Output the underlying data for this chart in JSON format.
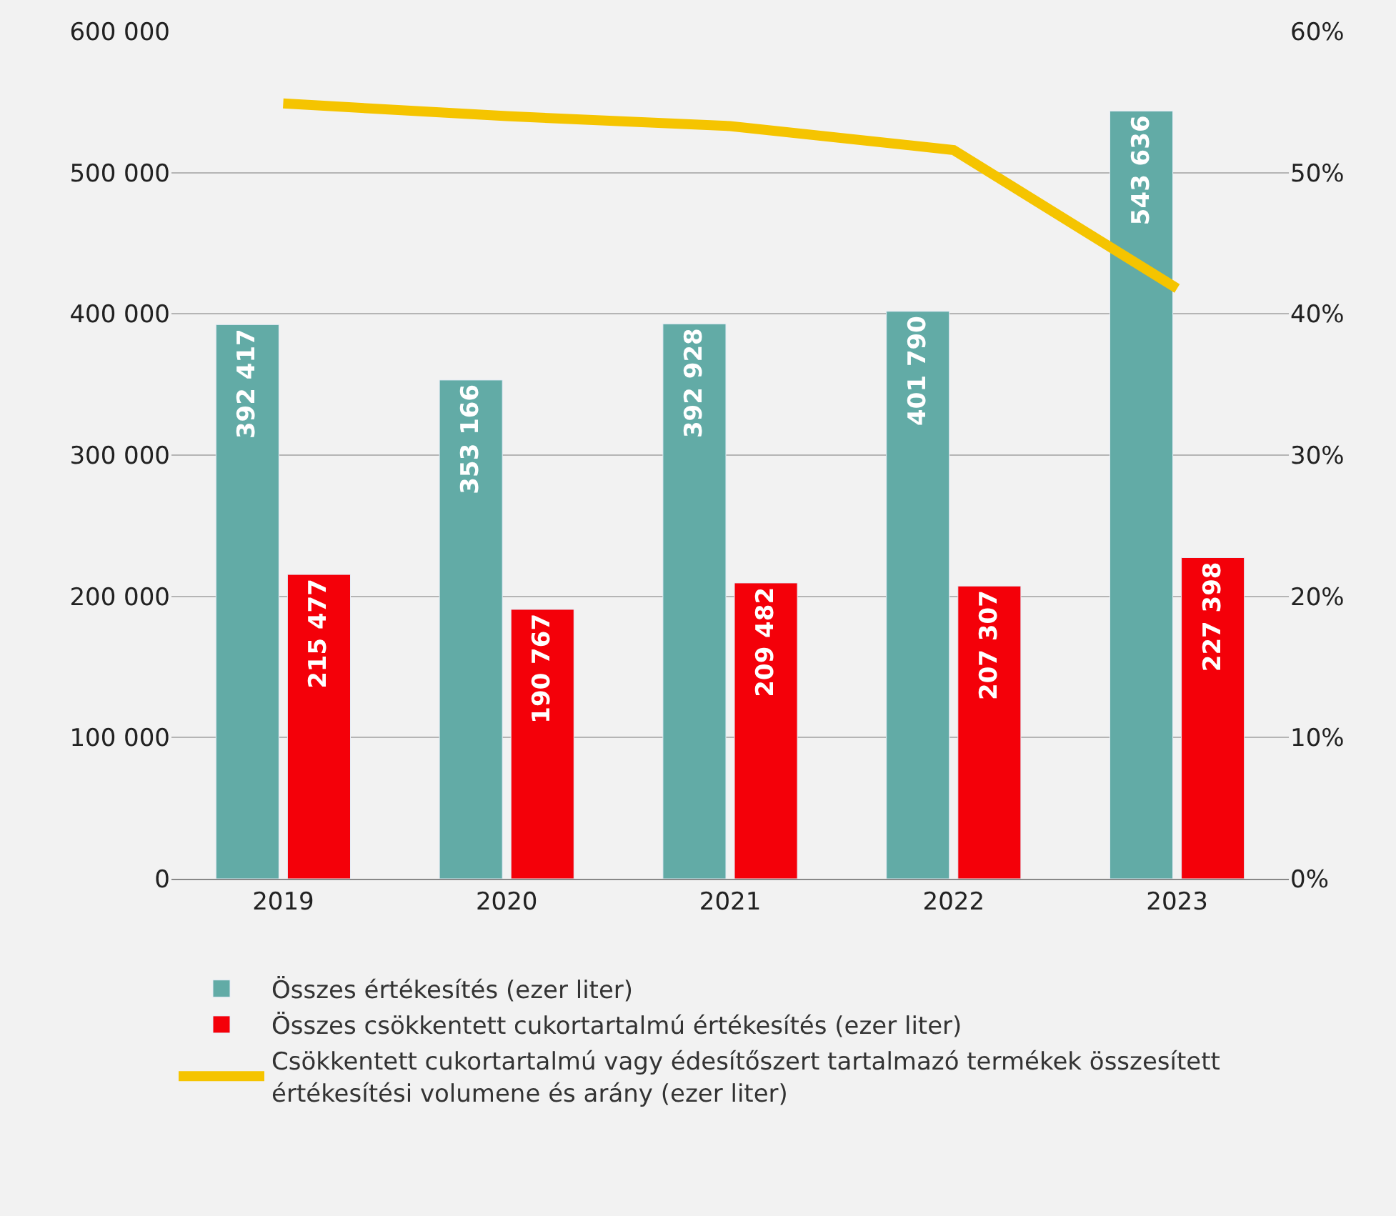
{
  "chart_data": {
    "type": "bar",
    "categories": [
      "2019",
      "2020",
      "2021",
      "2022",
      "2023"
    ],
    "series": [
      {
        "name": "Összes értékesítés (ezer liter)",
        "color": "#62aba6",
        "values": [
          392417,
          353166,
          392928,
          401790,
          543636
        ],
        "value_labels": [
          "392 417",
          "353 166",
          "392 928",
          "401 790",
          "543 636"
        ]
      },
      {
        "name": "Összes csökkentett cukortartalmú értékesítés (ezer liter)",
        "color": "#f40009",
        "values": [
          215477,
          190767,
          209482,
          207307,
          227398
        ],
        "value_labels": [
          "215 477",
          "190 767",
          "209 482",
          "207 307",
          "227 398"
        ]
      },
      {
        "name": "Csökkentett cukortartalmú vagy édesítőszert tartalmazó termékek összesített értékesítési volumene és arány (ezer liter)",
        "color": "#f5c400",
        "type": "line",
        "axis": "y2",
        "values": [
          54.9,
          54.0,
          53.3,
          51.6,
          41.8
        ]
      }
    ],
    "ylim": [
      0,
      600000
    ],
    "yticks": [
      {
        "value": 0,
        "label": "0"
      },
      {
        "value": 100000,
        "label": "100 000"
      },
      {
        "value": 200000,
        "label": "200 000"
      },
      {
        "value": 300000,
        "label": "300 000"
      },
      {
        "value": 400000,
        "label": "400 000"
      },
      {
        "value": 500000,
        "label": "500 000"
      },
      {
        "value": 600000,
        "label": "600 000"
      }
    ],
    "y2lim": [
      0,
      60
    ],
    "y2ticks": [
      {
        "value": 0,
        "label": "0%"
      },
      {
        "value": 10,
        "label": "10%"
      },
      {
        "value": 20,
        "label": "20%"
      },
      {
        "value": 30,
        "label": "30%"
      },
      {
        "value": 40,
        "label": "40%"
      },
      {
        "value": 50,
        "label": "50%"
      },
      {
        "value": 60,
        "label": "60%"
      }
    ],
    "grid": "y",
    "legend": "bottom",
    "marker": "none",
    "line_style": "solid"
  }
}
